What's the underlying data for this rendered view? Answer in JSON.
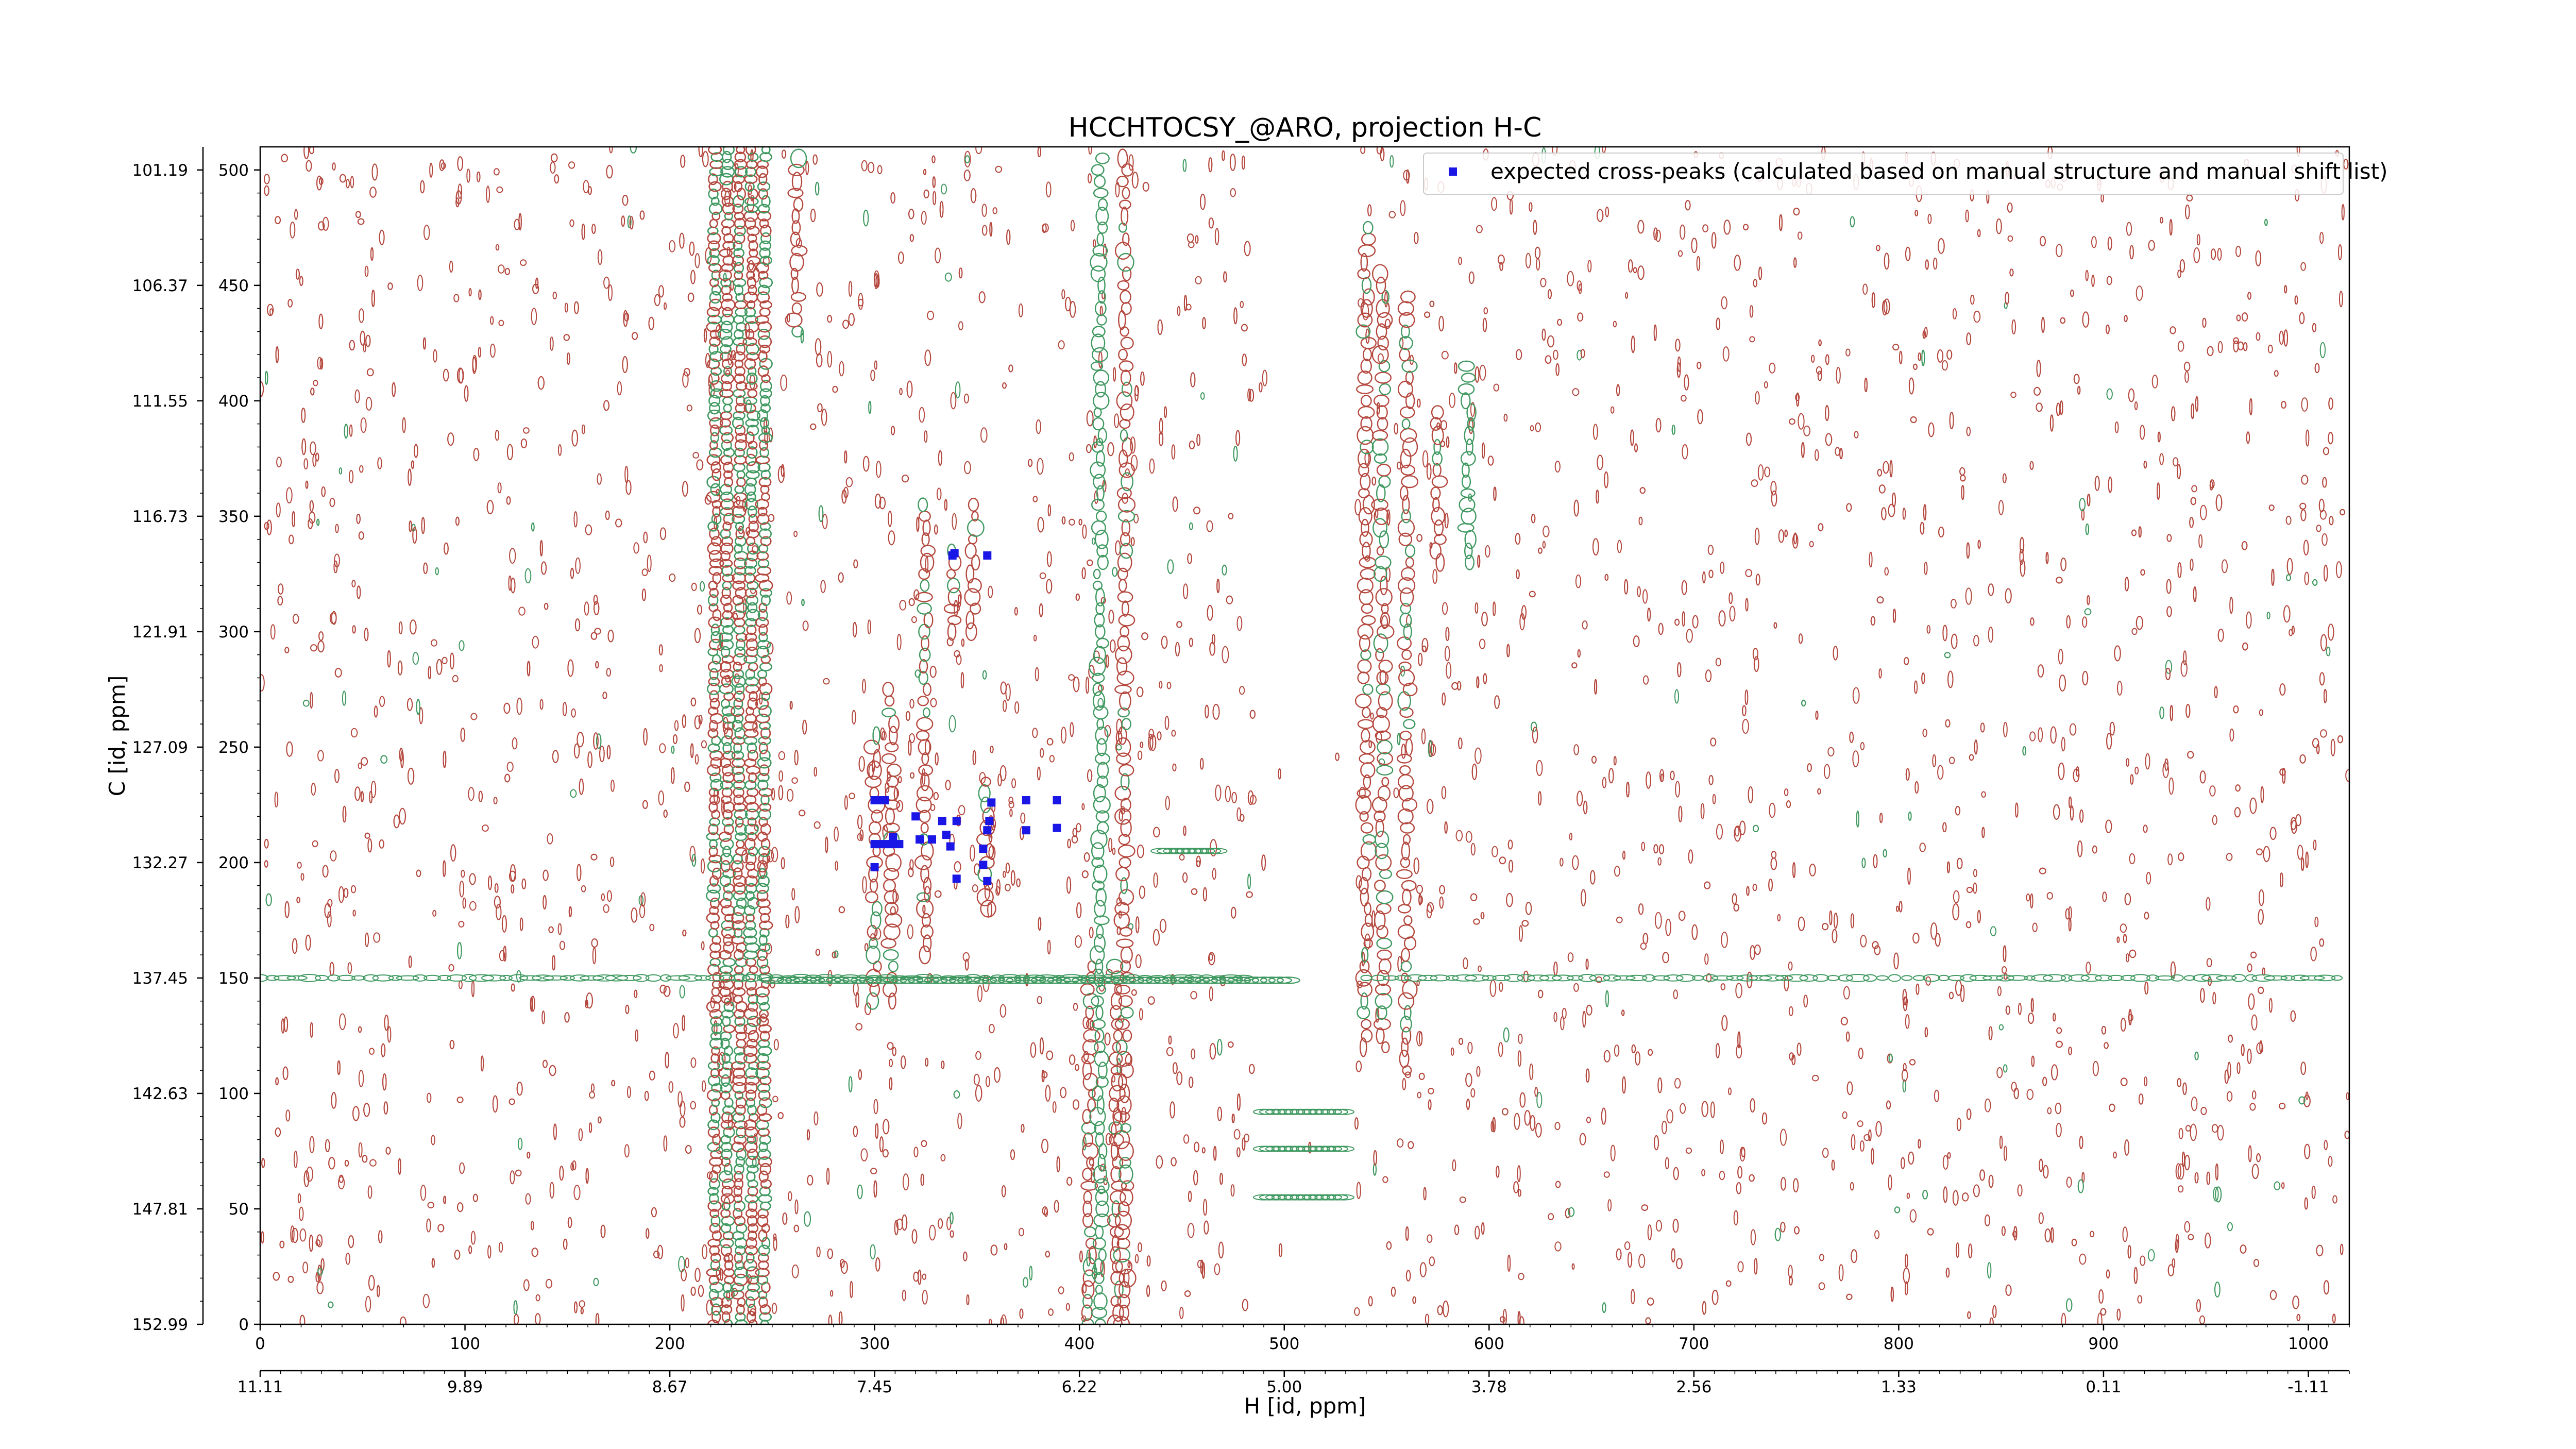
{
  "chart_data": {
    "type": "scatter",
    "title": "HCCHTOCSY_@ARO, projection H-C",
    "xlabel": "H [id, ppm]",
    "ylabel": "C [id, ppm]",
    "x_index_range": [
      0,
      1020
    ],
    "y_index_range": [
      0,
      510
    ],
    "x_ticks_index": [
      "0",
      "100",
      "200",
      "300",
      "400",
      "500",
      "600",
      "700",
      "800",
      "900",
      "1000"
    ],
    "x_ticks_ppm": [
      "11.11",
      "9.89",
      "8.67",
      "7.45",
      "6.22",
      "5.00",
      "3.78",
      "2.56",
      "1.33",
      "0.11",
      "-1.11"
    ],
    "y_ticks_index": [
      "500",
      "450",
      "400",
      "350",
      "300",
      "250",
      "200",
      "150",
      "100",
      "50",
      "0"
    ],
    "y_ticks_ppm": [
      "101.19",
      "106.37",
      "111.55",
      "116.73",
      "121.91",
      "127.09",
      "132.27",
      "137.45",
      "142.63",
      "147.81",
      "152.99"
    ],
    "legend_placement": "top-right",
    "colors": {
      "positive_contour": "#b5483e",
      "negative_contour": "#3f9960",
      "expected_marker": "#1a16e6"
    },
    "series": [
      {
        "name": "expected cross-peaks (calculated based on manual structure and manual shift list)",
        "x": [
          300,
          302,
          305,
          300,
          302,
          305,
          308,
          300,
          309,
          312,
          320,
          322,
          328,
          333,
          335,
          337,
          340,
          340,
          339,
          338,
          355,
          357,
          355,
          353,
          353,
          355,
          356,
          374,
          374,
          389,
          389
        ],
        "y": [
          227,
          227,
          227,
          208,
          208,
          208,
          208,
          198,
          211,
          208,
          220,
          210,
          210,
          218,
          212,
          207,
          218,
          193,
          334,
          333,
          333,
          226,
          214,
          206,
          199,
          192,
          218,
          227,
          214,
          227,
          215
        ]
      }
    ]
  }
}
